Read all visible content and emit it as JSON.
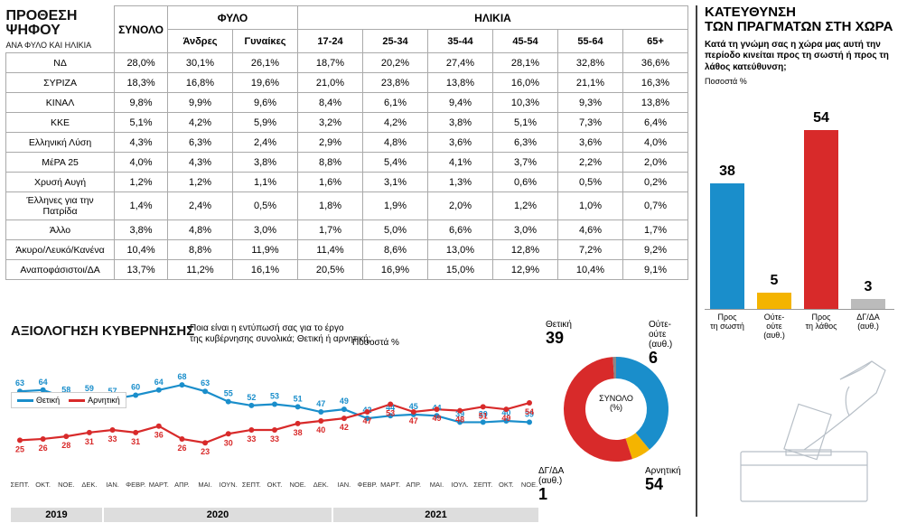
{
  "table": {
    "title_line1": "ΠΡΟΘΕΣΗ",
    "title_line2": "ΨΗΦΟΥ",
    "subtitle": "ΑΝΑ ΦΥΛΟ ΚΑΙ ΗΛΙΚΙΑ",
    "group_total": "ΣΥΝΟΛΟ",
    "group_gender": "ΦΥΛΟ",
    "group_age": "ΗΛΙΚΙΑ",
    "cols_gender": [
      "Άνδρες",
      "Γυναίκες"
    ],
    "cols_age": [
      "17-24",
      "25-34",
      "35-44",
      "45-54",
      "55-64",
      "65+"
    ],
    "rows": [
      {
        "label": "ΝΔ",
        "v": [
          "28,0%",
          "30,1%",
          "26,1%",
          "18,7%",
          "20,2%",
          "27,4%",
          "28,1%",
          "32,8%",
          "36,6%"
        ]
      },
      {
        "label": "ΣΥΡΙΖΑ",
        "v": [
          "18,3%",
          "16,8%",
          "19,6%",
          "21,0%",
          "23,8%",
          "13,8%",
          "16,0%",
          "21,1%",
          "16,3%"
        ]
      },
      {
        "label": "ΚΙΝΑΛ",
        "v": [
          "9,8%",
          "9,9%",
          "9,6%",
          "8,4%",
          "6,1%",
          "9,4%",
          "10,3%",
          "9,3%",
          "13,8%"
        ]
      },
      {
        "label": "ΚΚΕ",
        "v": [
          "5,1%",
          "4,2%",
          "5,9%",
          "3,2%",
          "4,2%",
          "3,8%",
          "5,1%",
          "7,3%",
          "6,4%"
        ]
      },
      {
        "label": "Ελληνική Λύση",
        "v": [
          "4,3%",
          "6,3%",
          "2,4%",
          "2,9%",
          "4,8%",
          "3,6%",
          "6,3%",
          "3,6%",
          "4,0%"
        ]
      },
      {
        "label": "ΜέΡΑ 25",
        "v": [
          "4,0%",
          "4,3%",
          "3,8%",
          "8,8%",
          "5,4%",
          "4,1%",
          "3,7%",
          "2,2%",
          "2,0%"
        ]
      },
      {
        "label": "Χρυσή Αυγή",
        "v": [
          "1,2%",
          "1,2%",
          "1,1%",
          "1,6%",
          "3,1%",
          "1,3%",
          "0,6%",
          "0,5%",
          "0,2%"
        ]
      },
      {
        "label": "Έλληνες για την Πατρίδα",
        "v": [
          "1,4%",
          "2,4%",
          "0,5%",
          "1,8%",
          "1,9%",
          "2,0%",
          "1,2%",
          "1,0%",
          "0,7%"
        ]
      },
      {
        "label": "Άλλο",
        "v": [
          "3,8%",
          "4,8%",
          "3,0%",
          "1,7%",
          "5,0%",
          "6,6%",
          "3,0%",
          "4,6%",
          "1,7%"
        ]
      },
      {
        "label": "Άκυρο/Λευκό/Κανένα",
        "v": [
          "10,4%",
          "8,8%",
          "11,9%",
          "11,4%",
          "8,6%",
          "13,0%",
          "12,8%",
          "7,2%",
          "9,2%"
        ]
      },
      {
        "label": "Αναποφάσιστοι/ΔΑ",
        "v": [
          "13,7%",
          "11,2%",
          "16,1%",
          "20,5%",
          "16,9%",
          "15,0%",
          "12,9%",
          "10,4%",
          "9,1%"
        ]
      }
    ]
  },
  "gov": {
    "title": "ΑΞΙΟΛΟΓΗΣΗ ΚΥΒΕΡΝΗΣΗΣ",
    "question_l1": "Ποια είναι η εντύπωσή σας για το έργο",
    "question_l2": "της κυβέρνησης συνολικά; Θετική ή αρνητική;",
    "pct_label": "Ποσοστά %",
    "legend_pos": "Θετική",
    "legend_neg": "Αρνητική",
    "color_pos": "#1a8ecb",
    "color_neg": "#d82a2a",
    "months": [
      "ΣΕΠΤ.",
      "ΟΚΤ.",
      "ΝΟΕ.",
      "ΔΕΚ.",
      "ΙΑΝ.",
      "ΦΕΒΡ.",
      "ΜΑΡΤ.",
      "ΑΠΡ.",
      "ΜΑΙ.",
      "ΙΟΥΝ.",
      "ΣΕΠΤ.",
      "ΟΚΤ.",
      "ΝΟΕ.",
      "ΔΕΚ.",
      "ΙΑΝ.",
      "ΦΕΒΡ.",
      "ΜΑΡΤ.",
      "ΑΠΡ.",
      "ΜΑΙ.",
      "ΙΟΥΛ.",
      "ΣΕΠΤ.",
      "ΟΚΤ.",
      "ΝΟΕ."
    ],
    "positive": [
      63,
      64,
      58,
      59,
      57,
      60,
      64,
      68,
      63,
      55,
      52,
      53,
      51,
      47,
      49,
      42,
      44,
      45,
      44,
      39,
      39,
      40,
      39
    ],
    "negative": [
      25,
      26,
      28,
      31,
      33,
      31,
      36,
      26,
      23,
      30,
      33,
      33,
      38,
      40,
      42,
      47,
      53,
      47,
      49,
      48,
      51,
      49,
      54
    ],
    "years": [
      {
        "label": "2019",
        "span": 4
      },
      {
        "label": "2020",
        "span": 10
      },
      {
        "label": "2021",
        "span": 9
      }
    ]
  },
  "donut": {
    "center_l1": "ΣΥΝΟΛΟ",
    "center_l2": "(%)",
    "segments": [
      {
        "label": "Θετική",
        "val": 39,
        "color": "#1a8ecb"
      },
      {
        "label": "Ούτε-ούτε\n(αυθ.)",
        "val": 6,
        "color": "#f4b400"
      },
      {
        "label": "Αρνητική",
        "val": 54,
        "color": "#d82a2a"
      },
      {
        "label": "ΔΓ/ΔΑ\n(αυθ.)",
        "val": 1,
        "color": "#888888"
      }
    ]
  },
  "direction": {
    "title_l1": "ΚΑΤΕΥΘΥΝΣΗ",
    "title_l2": "ΤΩΝ ΠΡΑΓΜΑΤΩΝ ΣΤΗ ΧΩΡΑ",
    "question": "Κατά τη γνώμη σας η χώρα μας αυτή την περίοδο κινείται προς τη σωστή ή προς τη λάθος κατεύθυνση;",
    "pct_label": "Ποσοστά %",
    "bars": [
      {
        "label": "Προς\nτη σωστή",
        "val": 38,
        "color": "#1a8ecb"
      },
      {
        "label": "Ούτε-\nούτε\n(αυθ.)",
        "val": 5,
        "color": "#f4b400"
      },
      {
        "label": "Προς\nτη λάθος",
        "val": 54,
        "color": "#d82a2a"
      },
      {
        "label": "ΔΓ/ΔΑ\n(αυθ.)",
        "val": 3,
        "color": "#bbbbbb"
      }
    ],
    "max_val": 60
  }
}
